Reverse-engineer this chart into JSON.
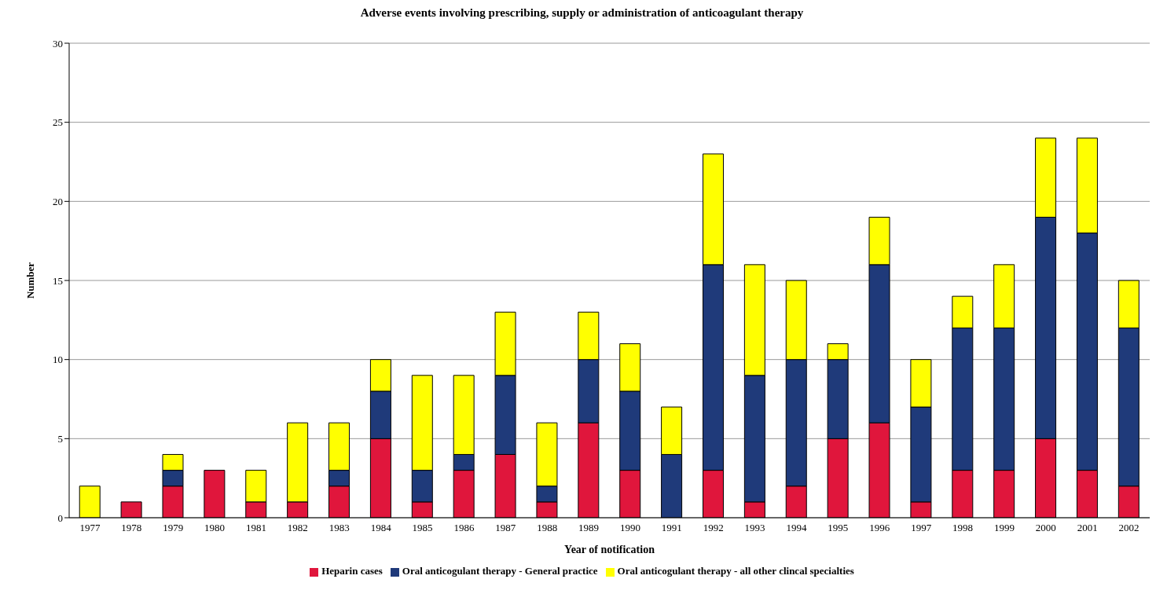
{
  "chart_data": {
    "type": "bar",
    "title": "Adverse events involving prescribing, supply or administration of anticoagulant therapy",
    "xlabel": "Year of notification",
    "ylabel": "Number",
    "categories": [
      "1977",
      "1978",
      "1979",
      "1980",
      "1981",
      "1982",
      "1983",
      "1984",
      "1985",
      "1986",
      "1987",
      "1988",
      "1989",
      "1990",
      "1991",
      "1992",
      "1993",
      "1994",
      "1995",
      "1996",
      "1997",
      "1998",
      "1999",
      "2000",
      "2001",
      "2002"
    ],
    "stacked": true,
    "series": [
      {
        "name": "Heparin cases",
        "color": "#e0163c",
        "values": [
          0,
          1,
          2,
          3,
          1,
          1,
          2,
          5,
          1,
          3,
          4,
          1,
          6,
          3,
          0,
          3,
          1,
          2,
          5,
          6,
          1,
          3,
          3,
          5,
          3,
          2
        ]
      },
      {
        "name": "Oral anticogulant therapy - General practice",
        "color": "#1f3a7a",
        "values": [
          0,
          0,
          1,
          0,
          0,
          0,
          1,
          3,
          2,
          1,
          5,
          1,
          4,
          5,
          4,
          13,
          8,
          8,
          5,
          10,
          6,
          9,
          9,
          14,
          15,
          10
        ]
      },
      {
        "name": "Oral anticogulant therapy - all other clincal specialties",
        "color": "#ffff00",
        "values": [
          2,
          0,
          1,
          0,
          2,
          5,
          3,
          2,
          6,
          5,
          4,
          4,
          3,
          3,
          3,
          7,
          7,
          5,
          1,
          3,
          3,
          2,
          4,
          5,
          6,
          3
        ]
      }
    ],
    "ylim": [
      0,
      30
    ],
    "yticks": [
      0,
      5,
      10,
      15,
      20,
      25,
      30
    ],
    "grid": "y",
    "legend": "bottom"
  }
}
